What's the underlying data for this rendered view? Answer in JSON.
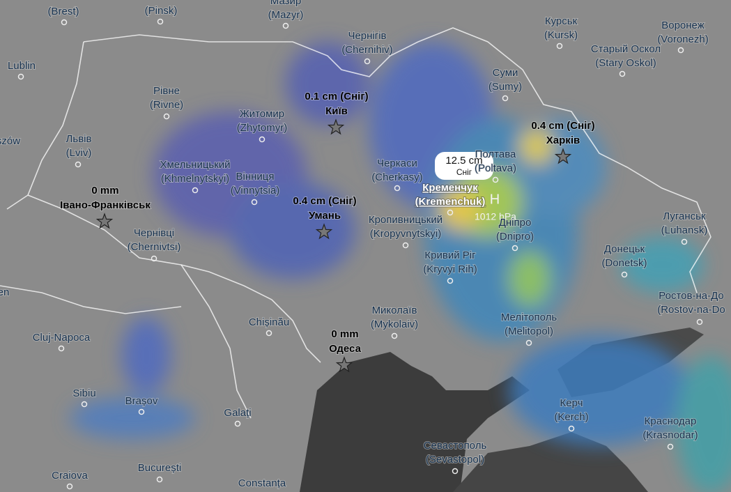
{
  "cities": [
    {
      "name": "(Brest)"
    },
    {
      "name": "(Pinsk)"
    },
    {
      "name": "Мазир",
      "latin": "(Mazyr)"
    },
    {
      "name": "Чернігів",
      "latin": "(Chernihiv)"
    },
    {
      "name": "Курськ",
      "latin": "(Kursk)"
    },
    {
      "name": "Воронеж",
      "latin": "(Voronezh)"
    },
    {
      "name": "Старый Оскол",
      "latin": "(Stary Oskol)"
    },
    {
      "name": "Lublin"
    },
    {
      "name": "Рівне",
      "latin": "(Rivne)"
    },
    {
      "name": "Житомир",
      "latin": "(Zhytomyr)"
    },
    {
      "name": "Суми",
      "latin": "(Sumy)"
    },
    {
      "name": "Львів",
      "latin": "(Lviv)"
    },
    {
      "name": "szów"
    },
    {
      "name": "Хмельницький",
      "latin": "(Khmelnytskyi)"
    },
    {
      "name": "Вінниця",
      "latin": "(Vinnytsia)"
    },
    {
      "name": "Черкаси",
      "latin": "(Cherkasy)"
    },
    {
      "name": "Полтава",
      "latin": "(Poltava)"
    },
    {
      "name": "Кременчук",
      "latin": "(Kremenchuk)"
    },
    {
      "name": "Кропивницький",
      "latin": "(Kropyvnytskyi)"
    },
    {
      "name": "Дніпро",
      "latin": "(Dnipro)"
    },
    {
      "name": "Луганськ",
      "latin": "(Luhansk)"
    },
    {
      "name": "Чернівці",
      "latin": "(Chernivtsi)"
    },
    {
      "name": "Кривий Ріг",
      "latin": "(Kryvyi Rih)"
    },
    {
      "name": "Донецьк",
      "latin": "(Donetsk)"
    },
    {
      "name": "en"
    },
    {
      "name": "Миколаїв",
      "latin": "(Mykolaiv)"
    },
    {
      "name": "Мелітополь",
      "latin": "(Melitopol)"
    },
    {
      "name": "Ростов-на-До",
      "latin": "(Rostov-na-Do"
    },
    {
      "name": "Chișinău"
    },
    {
      "name": "Cluj-Napoca"
    },
    {
      "name": "Sibiu"
    },
    {
      "name": "Brașov"
    },
    {
      "name": "Galați"
    },
    {
      "name": "Керч",
      "latin": "(Kerch)"
    },
    {
      "name": "Краснодар",
      "latin": "(Krasnodar)"
    },
    {
      "name": "Севастополь",
      "latin": "(Sevastopol)"
    },
    {
      "name": "Craiova"
    },
    {
      "name": "București"
    },
    {
      "name": "Constanța"
    }
  ],
  "markers": [
    {
      "amount": "0 mm",
      "place": "Івано-Франківськ"
    },
    {
      "amount": "0.1 cm (Сніг)",
      "place": "Київ"
    },
    {
      "amount": "0.4 cm (Сніг)",
      "place": "Харків"
    },
    {
      "amount": "0.4 cm (Сніг)",
      "place": "Умань"
    },
    {
      "amount": "0 mm",
      "place": "Одеса"
    }
  ],
  "tooltip": {
    "amount": "12.5 cm",
    "kind": "Сніг"
  },
  "pressure": {
    "label": "H",
    "value": "1012 hPa"
  }
}
